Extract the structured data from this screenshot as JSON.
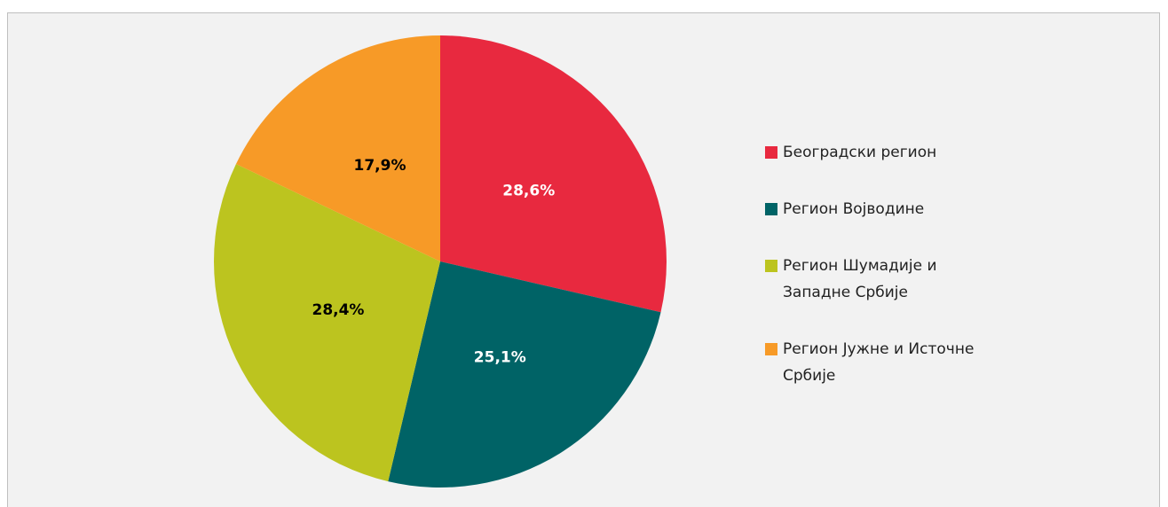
{
  "chart_data": {
    "type": "pie",
    "categories": [
      "Београдски регион",
      "Регион Војводине",
      "Регион Шумадије и Западне Србије",
      "Регион Јужне и Источне Србије"
    ],
    "values": [
      28.6,
      25.1,
      28.4,
      17.9
    ],
    "value_labels": [
      "28,6%",
      "25,1%",
      "28,4%",
      "17,9%"
    ],
    "colors": [
      "#e8293f",
      "#006366",
      "#bcc41f",
      "#f79a27"
    ],
    "label_colors": [
      "#ffffff",
      "#ffffff",
      "#000000",
      "#000000"
    ],
    "legend": "right"
  }
}
